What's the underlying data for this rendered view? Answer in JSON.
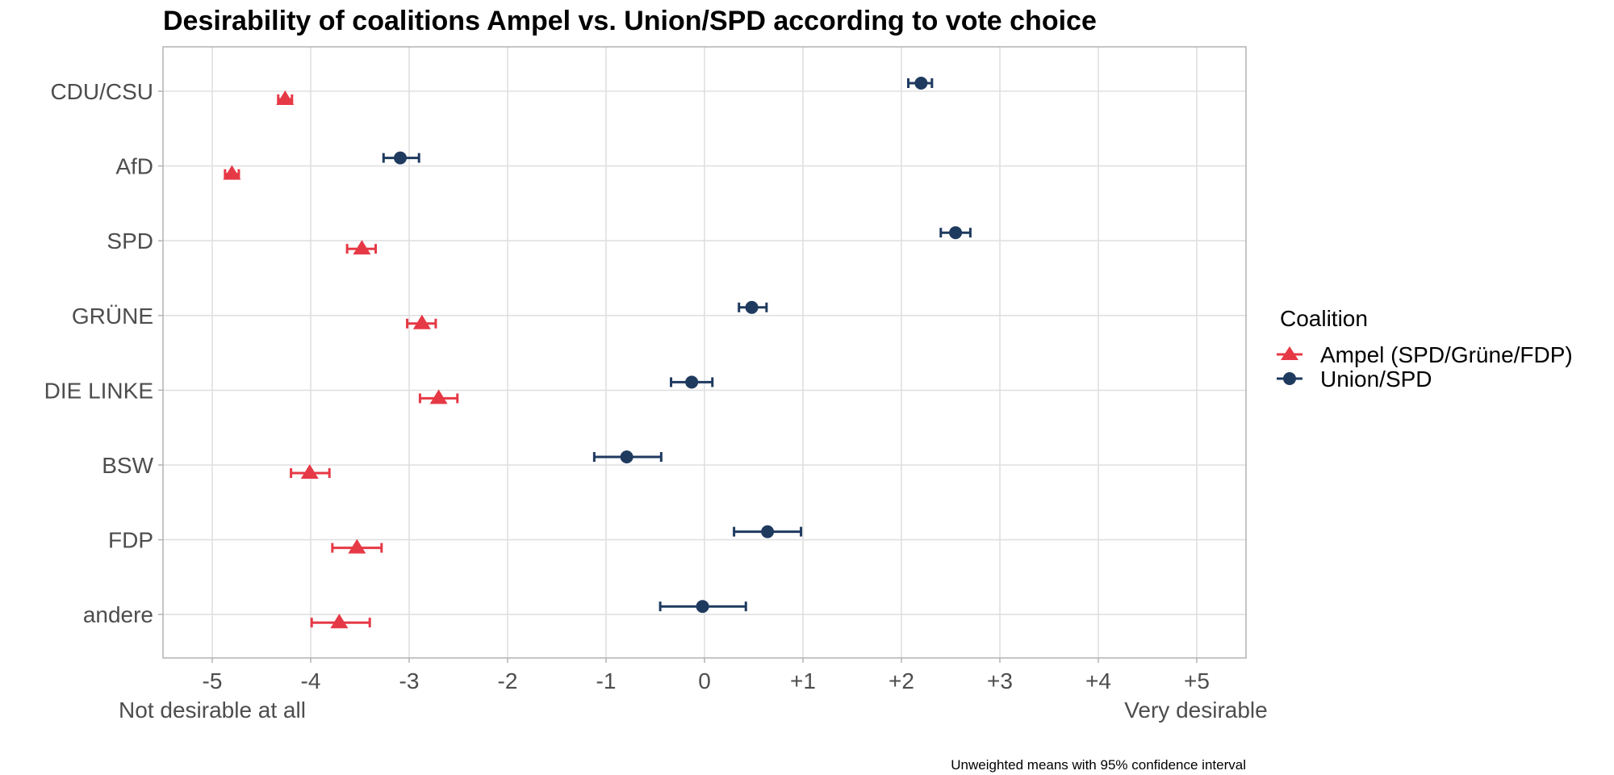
{
  "chart_data": {
    "type": "scatter",
    "subtype": "dot-plot with horizontal 95% confidence intervals",
    "title": "Desirability of coalitions Ampel vs. Union/SPD according to vote choice",
    "xlabel": "",
    "ylabel": "",
    "xlim": [
      -5.5,
      5.5
    ],
    "x_ticks": [
      -5,
      -4,
      -3,
      -2,
      -1,
      0,
      1,
      2,
      3,
      4,
      5
    ],
    "x_tick_labels": [
      "-5",
      "-4",
      "-3",
      "-2",
      "-1",
      "0",
      "+1",
      "+2",
      "+3",
      "+4",
      "+5"
    ],
    "x_end_labels": {
      "left": "Not desirable at all",
      "right": "Very desirable"
    },
    "categories": [
      "CDU/CSU",
      "AfD",
      "SPD",
      "GRÜNE",
      "DIE LINKE",
      "BSW",
      "FDP",
      "andere"
    ],
    "grid": true,
    "legend": {
      "title": "Coalition",
      "position": "right",
      "entries": [
        {
          "name": "Ampel (SPD/Grüne/FDP)",
          "shape": "triangle",
          "color": "#E63946"
        },
        {
          "name": "Union/SPD",
          "shape": "circle",
          "color": "#1F3A5F"
        }
      ]
    },
    "series": [
      {
        "name": "Ampel (SPD/Grüne/FDP)",
        "shape": "triangle",
        "color": "#E63946",
        "values": [
          -4.26,
          -4.8,
          -3.48,
          -2.87,
          -2.7,
          -4.01,
          -3.53,
          -3.71
        ],
        "ci_low": [
          -4.33,
          -4.87,
          -3.63,
          -3.02,
          -2.89,
          -4.2,
          -3.78,
          -3.99
        ],
        "ci_high": [
          -4.19,
          -4.73,
          -3.34,
          -2.73,
          -2.51,
          -3.81,
          -3.28,
          -3.4
        ]
      },
      {
        "name": "Union/SPD",
        "shape": "circle",
        "color": "#1F3A5F",
        "values": [
          2.2,
          -3.09,
          2.55,
          0.48,
          -0.13,
          -0.79,
          0.64,
          -0.02
        ],
        "ci_low": [
          2.07,
          -3.26,
          2.4,
          0.35,
          -0.34,
          -1.12,
          0.3,
          -0.45
        ],
        "ci_high": [
          2.31,
          -2.9,
          2.7,
          0.63,
          0.08,
          -0.44,
          0.98,
          0.42
        ]
      }
    ],
    "caption": "Unweighted means with 95% confidence interval"
  }
}
